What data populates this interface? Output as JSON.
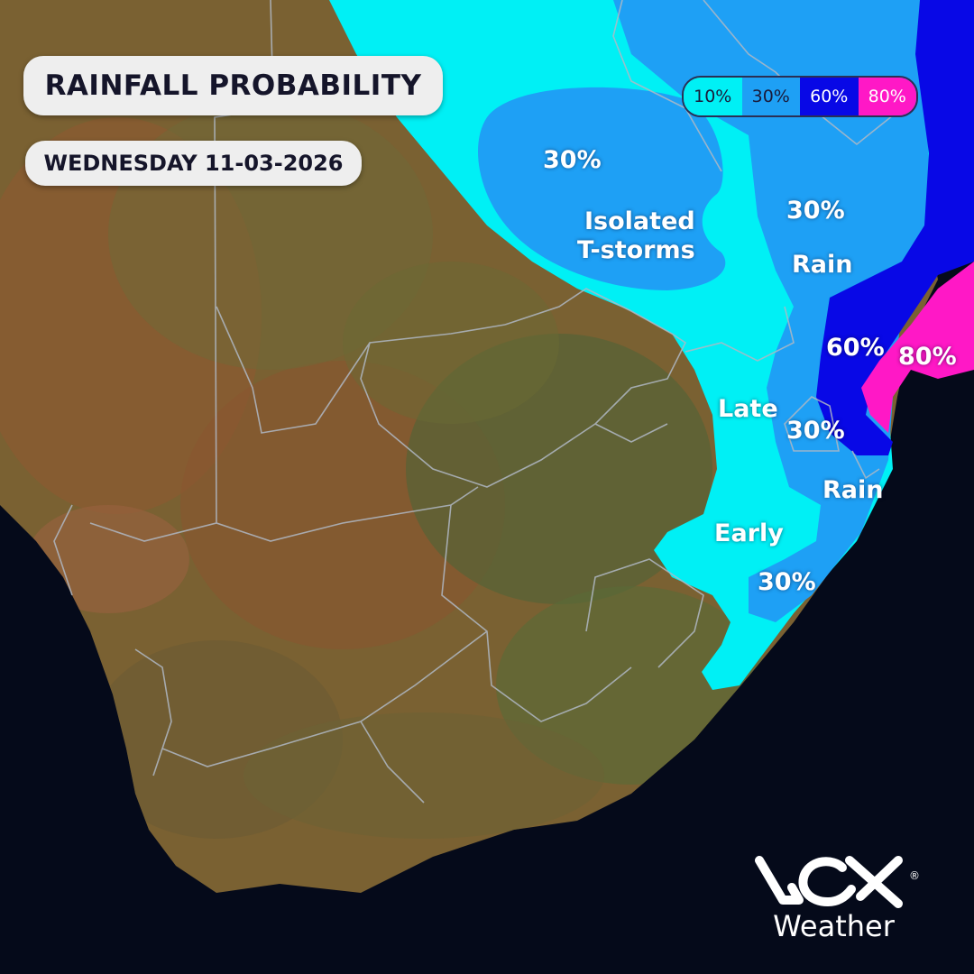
{
  "header": {
    "title": "RAINFALL PROBABILITY",
    "date": "WEDNESDAY 11-03-2026"
  },
  "legend": [
    {
      "label": "10%",
      "color": "#00f0f5",
      "text_color": "#1a1a3a"
    },
    {
      "label": "30%",
      "color": "#1ea0f5",
      "text_color": "#1a1a3a"
    },
    {
      "label": "60%",
      "color": "#0808e6",
      "text_color": "#ffffff"
    },
    {
      "label": "80%",
      "color": "#ff18c6",
      "text_color": "#ffffff"
    }
  ],
  "map": {
    "ocean_color": "#050a1a",
    "land_colors": [
      "#6e5a2e",
      "#8a6a35",
      "#5e6a35",
      "#9a5a30"
    ],
    "border_color": "#b0b8c4",
    "icons": [
      "satellite-land-relief",
      "province-borders"
    ]
  },
  "labels": {
    "northwest_pct": "30%",
    "isolated_tstorms": "Isolated\nT-storms",
    "northeast_pct": "30%",
    "rain_north": "Rain",
    "east_high_pct": "60%",
    "coast_max_pct": "80%",
    "late": "Late",
    "inland_pct": "30%",
    "rain_south": "Rain",
    "early": "Early",
    "south_pct": "30%"
  },
  "logo": {
    "brand_icon": "vox-logo-icon",
    "word": "Weather",
    "registered": "®"
  }
}
